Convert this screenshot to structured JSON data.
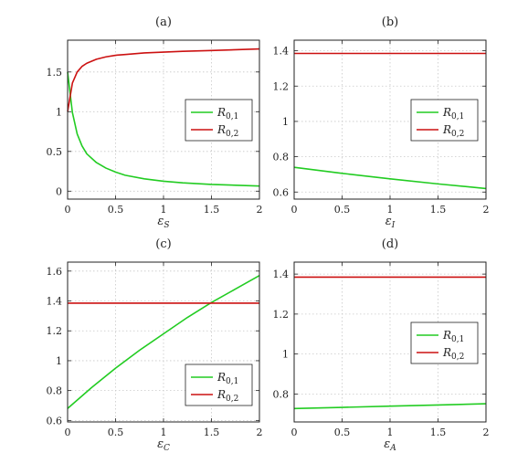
{
  "chart_data": [
    {
      "type": "line",
      "title": "(a)",
      "xlabel": "ε",
      "xlabel_sub": "S",
      "xlim": [
        0,
        2
      ],
      "ylim": [
        -0.1,
        1.9
      ],
      "xticks": [
        0,
        0.5,
        1,
        1.5,
        2
      ],
      "xtick_labels": [
        "0",
        "0.5",
        "1",
        "1.5",
        "2"
      ],
      "yticks": [
        0,
        0.5,
        1,
        1.5
      ],
      "ytick_labels": [
        "0",
        "0.5",
        "1",
        "1.5"
      ],
      "grid": true,
      "legend_position": "right-center",
      "series": [
        {
          "name": "R",
          "name_sub": "0,1",
          "color": "#22cc22",
          "x": [
            0,
            0.05,
            0.1,
            0.15,
            0.2,
            0.3,
            0.4,
            0.5,
            0.6,
            0.8,
            1.0,
            1.2,
            1.5,
            1.75,
            2.0
          ],
          "y": [
            1.5,
            0.99,
            0.72,
            0.57,
            0.47,
            0.36,
            0.29,
            0.24,
            0.2,
            0.155,
            0.125,
            0.105,
            0.085,
            0.075,
            0.065
          ]
        },
        {
          "name": "R",
          "name_sub": "0,2",
          "color": "#cc1111",
          "x": [
            0,
            0.05,
            0.1,
            0.15,
            0.2,
            0.3,
            0.4,
            0.5,
            0.6,
            0.8,
            1.0,
            1.2,
            1.5,
            1.75,
            2.0
          ],
          "y": [
            1.0,
            1.36,
            1.5,
            1.57,
            1.61,
            1.66,
            1.69,
            1.71,
            1.72,
            1.74,
            1.75,
            1.76,
            1.77,
            1.78,
            1.79
          ]
        }
      ]
    },
    {
      "type": "line",
      "title": "(b)",
      "xlabel": "ε",
      "xlabel_sub": "I",
      "xlim": [
        0,
        2
      ],
      "ylim": [
        0.56,
        1.46
      ],
      "xticks": [
        0,
        0.5,
        1,
        1.5,
        2
      ],
      "xtick_labels": [
        "0",
        "0.5",
        "1",
        "1.5",
        "2"
      ],
      "yticks": [
        0.6,
        0.8,
        1,
        1.2,
        1.4
      ],
      "ytick_labels": [
        "0.6",
        "0.8",
        "1",
        "1.2",
        "1.4"
      ],
      "grid": true,
      "legend_position": "right-center",
      "series": [
        {
          "name": "R",
          "name_sub": "0,1",
          "color": "#22cc22",
          "x": [
            0,
            0.5,
            1.0,
            1.5,
            2.0
          ],
          "y": [
            0.74,
            0.706,
            0.675,
            0.646,
            0.62
          ]
        },
        {
          "name": "R",
          "name_sub": "0,2",
          "color": "#cc1111",
          "x": [
            0,
            2.0
          ],
          "y": [
            1.385,
            1.385
          ]
        }
      ]
    },
    {
      "type": "line",
      "title": "(c)",
      "xlabel": "ε",
      "xlabel_sub": "C",
      "xlim": [
        0,
        2
      ],
      "ylim": [
        0.59,
        1.66
      ],
      "xticks": [
        0,
        0.5,
        1,
        1.5,
        2
      ],
      "xtick_labels": [
        "0",
        "0.5",
        "1",
        "1.5",
        "2"
      ],
      "yticks": [
        0.6,
        0.8,
        1,
        1.2,
        1.4,
        1.6
      ],
      "ytick_labels": [
        "0.6",
        "0.8",
        "1",
        "1.2",
        "1.4",
        "1.6"
      ],
      "grid": true,
      "legend_position": "bottom-right",
      "series": [
        {
          "name": "R",
          "name_sub": "0,1",
          "color": "#22cc22",
          "x": [
            0,
            0.25,
            0.5,
            0.75,
            1.0,
            1.25,
            1.5,
            1.75,
            2.0
          ],
          "y": [
            0.68,
            0.82,
            0.95,
            1.07,
            1.18,
            1.29,
            1.39,
            1.48,
            1.57
          ]
        },
        {
          "name": "R",
          "name_sub": "0,2",
          "color": "#cc1111",
          "x": [
            0,
            2.0
          ],
          "y": [
            1.385,
            1.385
          ]
        }
      ]
    },
    {
      "type": "line",
      "title": "(d)",
      "xlabel": "ε",
      "xlabel_sub": "A",
      "xlim": [
        0,
        2
      ],
      "ylim": [
        0.66,
        1.46
      ],
      "xticks": [
        0,
        0.5,
        1,
        1.5,
        2
      ],
      "xtick_labels": [
        "0",
        "0.5",
        "1",
        "1.5",
        "2"
      ],
      "yticks": [
        0.8,
        1,
        1.2,
        1.4
      ],
      "ytick_labels": [
        "0.8",
        "1",
        "1.2",
        "1.4"
      ],
      "grid": true,
      "legend_position": "right-center",
      "series": [
        {
          "name": "R",
          "name_sub": "0,1",
          "color": "#22cc22",
          "x": [
            0,
            0.5,
            1.0,
            1.5,
            2.0
          ],
          "y": [
            0.727,
            0.733,
            0.739,
            0.745,
            0.751
          ]
        },
        {
          "name": "R",
          "name_sub": "0,2",
          "color": "#cc1111",
          "x": [
            0,
            2.0
          ],
          "y": [
            1.385,
            1.385
          ]
        }
      ]
    }
  ]
}
